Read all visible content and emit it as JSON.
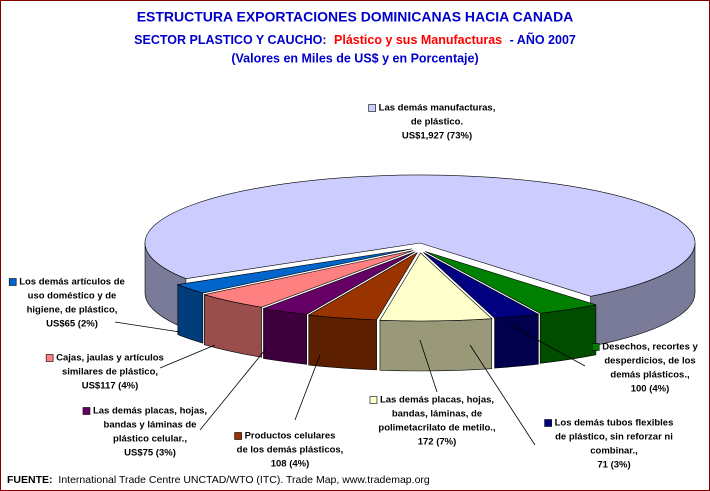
{
  "chart_data": {
    "type": "pie",
    "title": "ESTRUCTURA EXPORTACIONES DOMINICANAS HACIA CANADA",
    "subtitle": [
      "SECTOR PLASTICO Y CAUCHO:",
      "Plástico y sus Manufacturas",
      "- AÑO 2007"
    ],
    "caption": "(Valores en Miles de US$ y en Porcentaje)",
    "categories": [
      [
        "Las demás manufacturas,",
        "de plástico."
      ],
      [
        "Desechos, recortes y",
        "desperdicios, de los",
        "demás plásticos.,"
      ],
      [
        "Los demás tubos flexibles",
        "de plástico, sin reforzar ni",
        "combinar.,"
      ],
      [
        "Las demás placas, hojas,",
        "bandas, láminas, de",
        "polimetacrilato de metilo.,"
      ],
      [
        "Productos celulares",
        "de los demás plásticos,"
      ],
      [
        "Las demás placas, hojas,",
        "bandas y láminas de",
        "plástico celular.,"
      ],
      [
        "Cajas, jaulas y artículos",
        "similares de plástico,"
      ],
      [
        "Los demás artículos de",
        "uso doméstico y de",
        "higiene, de plástico,"
      ]
    ],
    "values": [
      1927,
      100,
      71,
      172,
      108,
      75,
      117,
      65
    ],
    "value_labels": [
      "US$1,927 (73%)",
      "100 (4%)",
      "71 (3%)",
      "172 (7%)",
      "108 (4%)",
      "US$75 (3%)",
      "US$117 (4%)",
      "US$65 (2%)"
    ],
    "colors": [
      "#ccccff",
      "#008000",
      "#000080",
      "#ffffcc",
      "#993300",
      "#660066",
      "#ff8080",
      "#0066cc"
    ],
    "footer": {
      "label": "FUENTE:",
      "text": "International Trade Centre UNCTAD/WTO (ITC). Trade Map, www.trademap.org"
    }
  }
}
